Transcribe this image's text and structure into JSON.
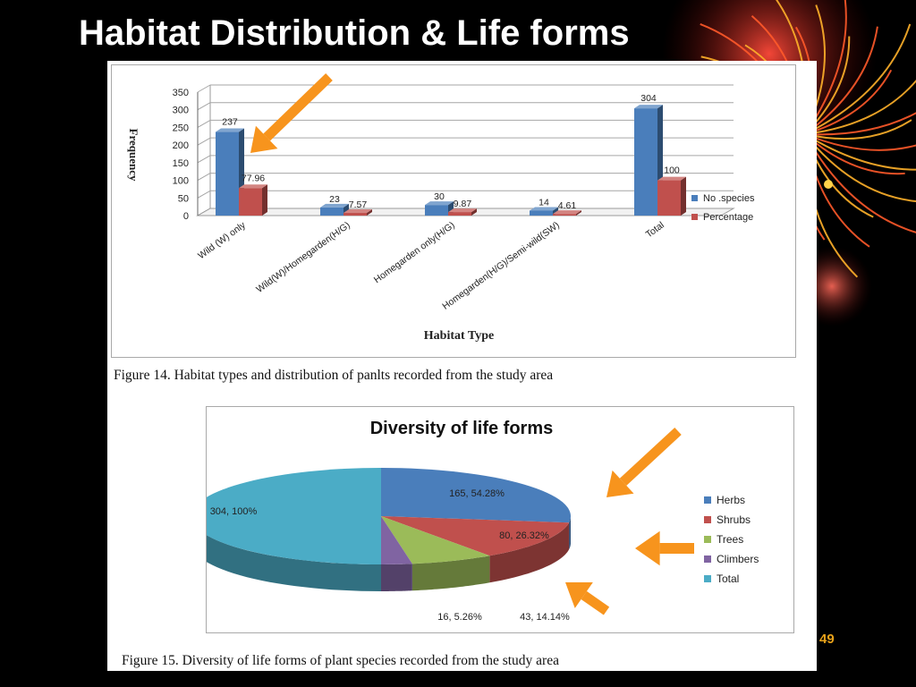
{
  "slide": {
    "title": "Habitat Distribution & Life forms",
    "page_number": "49"
  },
  "colors": {
    "background": "#000000",
    "blue": "#4a7ebb",
    "red": "#c0504d",
    "green": "#9bbb59",
    "purple": "#8064a2",
    "teal": "#4bacc6",
    "arrow": "#f7941d"
  },
  "captions": {
    "figure14": "Figure 14. Habitat types and distribution of panlts recorded from the study area",
    "figure15": "Figure 15. Diversity of life forms of plant species recorded from the study area"
  },
  "chart_data": [
    {
      "type": "bar",
      "title": "",
      "xlabel": "Habitat Type",
      "ylabel": "Frequency",
      "categories": [
        "Wild (W) only",
        "Wild(W)/Homegarden(H/G)",
        "Homegarden only(H/G)",
        "Homegarden(H/G)/Semi-wild(SW)",
        "Total"
      ],
      "series": [
        {
          "name": "No .species",
          "values": [
            237,
            23,
            30,
            14,
            304
          ],
          "labels": [
            "237",
            "23",
            "30",
            "14",
            "304"
          ],
          "color": "#4a7ebb"
        },
        {
          "name": "Percentage",
          "values": [
            77.96,
            7.57,
            9.87,
            4.61,
            100
          ],
          "labels": [
            "77.96",
            "7.57",
            "9.87",
            "4.61",
            "100"
          ],
          "color": "#c0504d"
        }
      ],
      "ylim": [
        0,
        350
      ],
      "yticks": [
        "0",
        "50",
        "100",
        "150",
        "200",
        "250",
        "300",
        "350"
      ],
      "grid": true,
      "legend": "right",
      "style": "3d"
    },
    {
      "type": "pie",
      "title": "Diversity of life forms",
      "categories": [
        "Herbs",
        "Shrubs",
        "Trees",
        "Climbers",
        "Total"
      ],
      "values": [
        165,
        80,
        43,
        16,
        304
      ],
      "labels": [
        "165, 54.28%",
        "80, 26.32%",
        "43, 14.14%",
        "16, 5.26%",
        "304, 100%"
      ],
      "colors": [
        "#4a7ebb",
        "#c0504d",
        "#9bbb59",
        "#8064a2",
        "#4bacc6"
      ],
      "legend": "right",
      "style": "3d"
    }
  ]
}
